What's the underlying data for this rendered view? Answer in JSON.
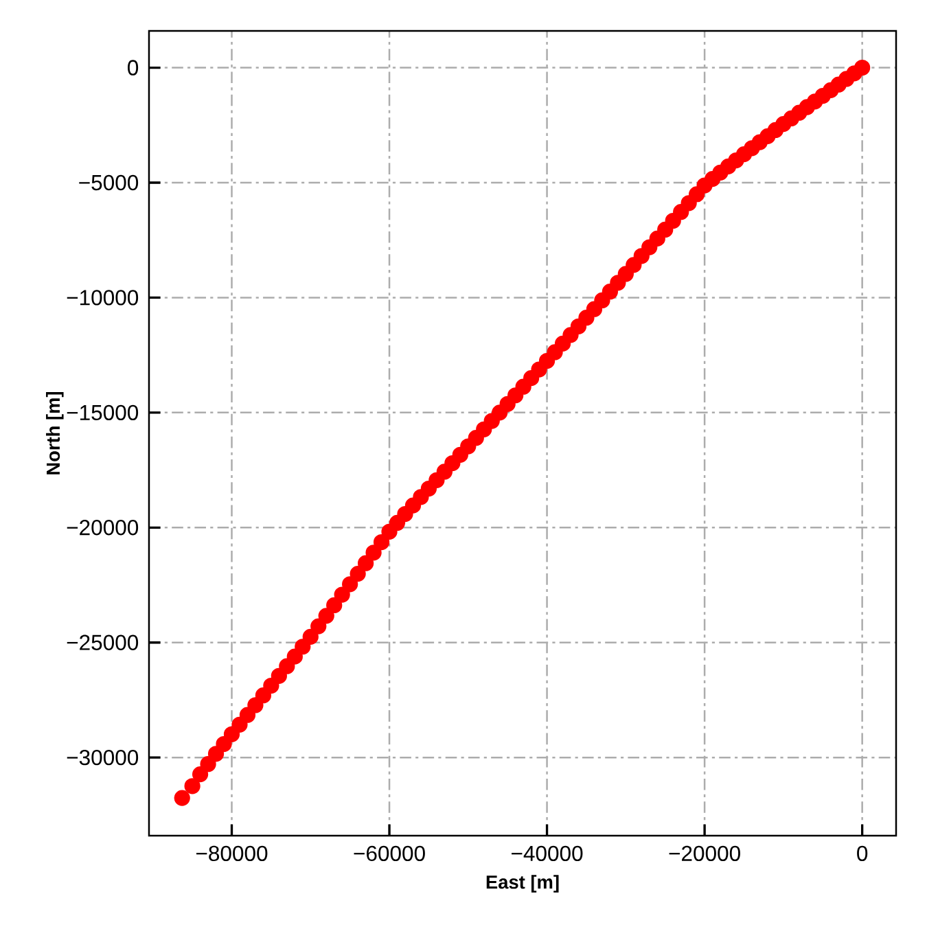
{
  "chart_data": {
    "type": "scatter",
    "xlabel": "East [m]",
    "ylabel": "North [m]",
    "x": [
      0,
      -1000,
      -2000,
      -3000,
      -4000,
      -5000,
      -6000,
      -7000,
      -8000,
      -9000,
      -10000,
      -11000,
      -12000,
      -13000,
      -14000,
      -15000,
      -16000,
      -17000,
      -18000,
      -19000,
      -20000,
      -21000,
      -22000,
      -23000,
      -24000,
      -25000,
      -26000,
      -27000,
      -28000,
      -29000,
      -30000,
      -31000,
      -32000,
      -33000,
      -34000,
      -35000,
      -36000,
      -37000,
      -38000,
      -39000,
      -40000,
      -41000,
      -42000,
      -43000,
      -44000,
      -45000,
      -46000,
      -47000,
      -48000,
      -49000,
      -50000,
      -51000,
      -52000,
      -53000,
      -54000,
      -55000,
      -56000,
      -57000,
      -58000,
      -59000,
      -60000,
      -61000,
      -62000,
      -63000,
      -64000,
      -65000,
      -66000,
      -67000,
      -68000,
      -69000,
      -70000,
      -71000,
      -72000,
      -73000,
      -74000,
      -75000,
      -76000,
      -77000,
      -78000,
      -79000,
      -80000,
      -81000,
      -82000,
      -83000,
      -84000,
      -85000,
      -86300
    ],
    "values": [
      0,
      -245,
      -490,
      -735,
      -980,
      -1225,
      -1470,
      -1715,
      -1960,
      -2205,
      -2450,
      -2715,
      -2980,
      -3240,
      -3500,
      -3765,
      -4030,
      -4295,
      -4560,
      -4840,
      -5120,
      -5505,
      -5890,
      -6275,
      -6660,
      -7045,
      -7430,
      -7810,
      -8190,
      -8580,
      -8970,
      -9355,
      -9740,
      -10120,
      -10500,
      -10875,
      -11250,
      -11625,
      -12000,
      -12375,
      -12750,
      -13125,
      -13500,
      -13875,
      -14250,
      -14625,
      -15000,
      -15365,
      -15730,
      -16100,
      -16470,
      -16835,
      -17200,
      -17570,
      -17940,
      -18305,
      -18670,
      -19040,
      -19410,
      -19795,
      -20180,
      -20635,
      -21090,
      -21550,
      -22010,
      -22465,
      -22920,
      -23380,
      -23840,
      -24295,
      -24750,
      -25180,
      -25610,
      -26030,
      -26450,
      -26875,
      -27300,
      -27725,
      -28150,
      -28570,
      -28990,
      -29415,
      -29840,
      -30285,
      -30730,
      -31245,
      -31760
    ],
    "color": "#ff0000",
    "marker": "circle",
    "grid": true,
    "xlim": [
      -90500,
      4300
    ],
    "ylim": [
      -33400,
      1600
    ],
    "xticks": [
      {
        "value": -80000,
        "label": "−80000"
      },
      {
        "value": -60000,
        "label": "−60000"
      },
      {
        "value": -40000,
        "label": "−40000"
      },
      {
        "value": -20000,
        "label": "−20000"
      },
      0
    ],
    "yticks": [
      0,
      {
        "value": -5000,
        "label": "−5000"
      },
      {
        "value": -10000,
        "label": "−10000"
      },
      {
        "value": -15000,
        "label": "−15000"
      },
      {
        "value": -20000,
        "label": "−20000"
      },
      {
        "value": -25000,
        "label": "−25000"
      },
      {
        "value": -30000,
        "label": "−30000"
      }
    ]
  }
}
